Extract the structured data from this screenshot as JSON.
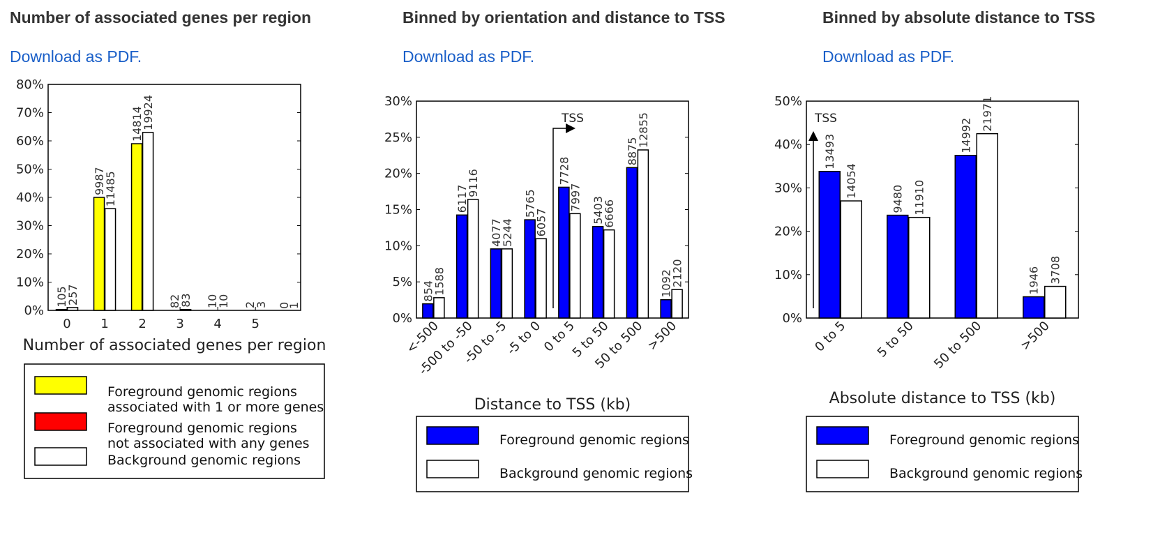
{
  "colors": {
    "foreground": "#0000ff",
    "associated": "#ffff00",
    "unassociated": "#ff0000",
    "background": "#ffffff",
    "link": "#1a5fc8"
  },
  "link_label": "Download as PDF.",
  "chart_data": [
    {
      "id": "genes",
      "type": "bar",
      "title": "Number of associated genes per region",
      "xlabel": "Number of associated genes per region",
      "ylabel": "",
      "ylim": [
        0,
        80
      ],
      "yticks": [
        "0%",
        "10%",
        "20%",
        "30%",
        "40%",
        "50%",
        "60%",
        "70%",
        "80%"
      ],
      "categories": [
        "0",
        "1",
        "2",
        "3",
        "4",
        "5"
      ],
      "series": [
        {
          "name": "Foreground genomic regions associated with 1 or more genes / not associated with any genes",
          "values": [
            0.3,
            40,
            59,
            0,
            0,
            0
          ],
          "labels": [
            "105",
            "9987",
            "14814",
            "82",
            "10",
            "2"
          ],
          "colors": [
            "#ff0000",
            "#ffff00",
            "#ffff00",
            "#ffff00",
            "#ffff00",
            "#ffff00"
          ]
        },
        {
          "name": "Background genomic regions",
          "values": [
            1,
            36,
            63,
            0.3,
            0,
            0
          ],
          "labels": [
            "257",
            "11485",
            "19924",
            "83",
            "10",
            "3"
          ],
          "colors": [
            "#ffffff",
            "#ffffff",
            "#ffffff",
            "#ffffff",
            "#ffffff",
            "#ffffff"
          ]
        }
      ],
      "extra_labels": [
        "0",
        "1"
      ],
      "legend": [
        {
          "color": "#ffff00",
          "line1": "Foreground genomic regions",
          "line2": "associated with 1 or more genes"
        },
        {
          "color": "#ff0000",
          "line1": "Foreground genomic regions",
          "line2": "not associated with any genes"
        },
        {
          "color": "#ffffff",
          "line1": "Background genomic regions",
          "line2": ""
        }
      ]
    },
    {
      "id": "orient",
      "type": "bar",
      "title": "Binned by orientation and distance to TSS",
      "xlabel": "Distance to TSS (kb)",
      "ylabel": "",
      "ylim": [
        0,
        32
      ],
      "yticks": [
        "0%",
        "5%",
        "10%",
        "15%",
        "20%",
        "25%",
        "30%"
      ],
      "categories": [
        "<-500",
        "-500 to -50",
        "-50 to -5",
        "-5 to 0",
        "0 to 5",
        "5 to 50",
        "50 to 500",
        ">500"
      ],
      "annotation": "TSS",
      "series": [
        {
          "name": "Foreground genomic regions",
          "values": [
            2.1,
            15.2,
            10.2,
            14.5,
            19.3,
            13.5,
            22.2,
            2.7
          ],
          "labels": [
            "854",
            "6117",
            "4077",
            "5765",
            "7728",
            "5403",
            "8875",
            "1092"
          ],
          "colors": [
            "#0000ff",
            "#0000ff",
            "#0000ff",
            "#0000ff",
            "#0000ff",
            "#0000ff",
            "#0000ff",
            "#0000ff"
          ]
        },
        {
          "name": "Background genomic regions",
          "values": [
            3.0,
            17.5,
            10.2,
            11.7,
            15.4,
            13.0,
            24.8,
            4.2
          ],
          "labels": [
            "1588",
            "9116",
            "5244",
            "6057",
            "7997",
            "6666",
            "12855",
            "2120"
          ],
          "colors": [
            "#ffffff",
            "#ffffff",
            "#ffffff",
            "#ffffff",
            "#ffffff",
            "#ffffff",
            "#ffffff",
            "#ffffff"
          ]
        }
      ],
      "legend": [
        {
          "color": "#0000ff",
          "line1": "Foreground genomic regions",
          "line2": ""
        },
        {
          "color": "#ffffff",
          "line1": "Background genomic regions",
          "line2": ""
        }
      ]
    },
    {
      "id": "absdist",
      "type": "bar",
      "title": "Binned by absolute distance to TSS",
      "xlabel": "Absolute distance to TSS (kb)",
      "ylabel": "",
      "ylim": [
        0,
        50
      ],
      "yticks": [
        "0%",
        "10%",
        "20%",
        "30%",
        "40%",
        "50%"
      ],
      "categories": [
        "0 to 5",
        "5 to 50",
        "50 to 500",
        ">500"
      ],
      "annotation": "TSS",
      "series": [
        {
          "name": "Foreground genomic regions",
          "values": [
            33.8,
            23.7,
            37.5,
            4.9
          ],
          "labels": [
            "13493",
            "9480",
            "14992",
            "1946"
          ],
          "colors": [
            "#0000ff",
            "#0000ff",
            "#0000ff",
            "#0000ff"
          ]
        },
        {
          "name": "Background genomic regions",
          "values": [
            27.0,
            23.2,
            42.5,
            7.3
          ],
          "labels": [
            "14054",
            "11910",
            "21971",
            "3708"
          ],
          "colors": [
            "#ffffff",
            "#ffffff",
            "#ffffff",
            "#ffffff"
          ]
        }
      ],
      "legend": [
        {
          "color": "#0000ff",
          "line1": "Foreground genomic regions",
          "line2": ""
        },
        {
          "color": "#ffffff",
          "line1": "Background genomic regions",
          "line2": ""
        }
      ]
    }
  ]
}
